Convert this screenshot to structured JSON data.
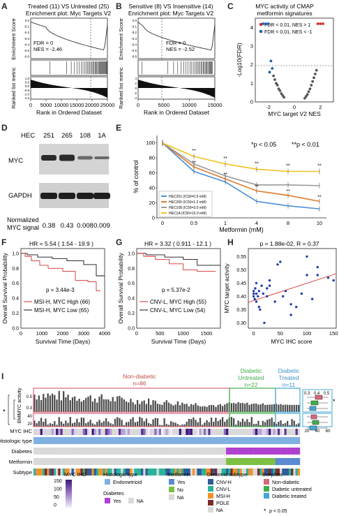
{
  "panel_labels": [
    "A",
    "B",
    "C",
    "D",
    "E",
    "F",
    "G",
    "H",
    "I"
  ],
  "panelA": {
    "title1": "Treated (11) VS Untreated (25)",
    "title2": "Enrichment plot: Myc Targets V2",
    "ylabel_top": "Enrichment Score",
    "ylabel_bottom": "Ranked list metric",
    "xlabel": "Rank in Ordered Dataset",
    "fdr": "FDR = 0",
    "nes": "NES = -2.46",
    "xticks": [
      "0",
      "5000",
      "10000",
      "15000",
      "20000",
      "25000"
    ],
    "yticks_top": [
      "0.0",
      "-0.1",
      "-0.2",
      "-0.3",
      "-0.4",
      "-0.5",
      "-0.6"
    ],
    "yticks_bottom": [
      "1.0",
      "0.5",
      "0.0",
      "-0.5",
      "-1.0",
      "-1.5"
    ]
  },
  "panelB": {
    "title1": "Sensitive (8) VS Insensitive (14)",
    "title2": "Enrichment plot: Myc Targets V2",
    "ylabel_top": "Enrichment Score",
    "ylabel_bottom": "Ranked list metric",
    "xlabel": "Rank in Ordered Dataset",
    "fdr": "FDR = 0",
    "nes": "NES = -2.52",
    "xticks": [
      "0",
      "5000",
      "10000",
      "15000"
    ],
    "yticks_top": [
      "0.0",
      "-0.1",
      "-0.2",
      "-0.3",
      "-0.4",
      "-0.5",
      "-0.6"
    ],
    "yticks_bottom": [
      "4",
      "2",
      "0",
      "-2",
      "-4"
    ]
  },
  "panelC": {
    "title1": "MYC activity of CMAP",
    "title2": "metformin signatures",
    "legend1": "FDR < 0.01, NES > 1",
    "legend2": "FDR < 0.01, NES < -1",
    "ylabel": "-Log10(FDR)",
    "xlabel": "MYC target V2 NES",
    "xticks": [
      "-2",
      "0",
      "2"
    ],
    "yticks": [
      "0",
      "1",
      "2",
      "3",
      "4"
    ],
    "colors": {
      "pos": "#d32f2f",
      "neg": "#1f5fa8",
      "ns": "#555555"
    }
  },
  "panelD": {
    "header": "HEC",
    "lanes": [
      "251",
      "265",
      "108",
      "1A"
    ],
    "row1": "MYC",
    "row2": "GAPDH",
    "sig_label1": "Normalized",
    "sig_label2": "MYC signal",
    "signals": [
      "0.38",
      "0.43",
      "0.008",
      "0.009"
    ]
  },
  "panelE": {
    "sig1": "*p < 0.05",
    "sig2": "**p < 0.01",
    "ylabel": "% of control",
    "xlabel": "Metformin (mM)",
    "yticks": [
      "0",
      "20",
      "40",
      "60",
      "80",
      "100"
    ],
    "legend": [
      "HEC251 (IC50=0.9 mM)",
      "HEC265 (IC50=1.2 mM)",
      "HEC108 (IC50=3.0 mM)",
      "HEC1A (IC50=15.0 mM)"
    ]
  },
  "panelF": {
    "hr": "HR = 5.54 ( 1.54 - 19.9 )",
    "p": "p = 3.44e-3",
    "legend_high": "MSI-H, MYC High (66)",
    "legend_low": "MSI-H, MYC Low (65)",
    "ylabel": "Overall Survival Probability",
    "xlabel": "Survival Time (Days)",
    "xticks": [
      "0",
      "1000",
      "2000",
      "3000",
      "4000"
    ],
    "yticks": [
      "0.0",
      "0.2",
      "0.4",
      "0.6",
      "0.8",
      "1.0"
    ]
  },
  "panelG": {
    "hr": "HR = 3.32 ( 0.911 - 12.1 )",
    "p": "p = 5.37e-2",
    "legend_high": "CNV-L, MYC High (55)",
    "legend_low": "CNV-L, MYC Low (54)",
    "ylabel": "Overall Survival Probability",
    "xlabel": "Survival Time (Days)",
    "xticks": [
      "0",
      "500",
      "1000",
      "1500"
    ],
    "yticks": [
      "0.0",
      "0.2",
      "0.4",
      "0.6",
      "0.8",
      "1.0"
    ]
  },
  "panelH": {
    "title": "p = 1.88e-02, R = 0.37",
    "ylabel": "MYC target activity",
    "xlabel": "MYC IHC score",
    "xticks": [
      "0",
      "50",
      "100",
      "150"
    ],
    "yticks": [
      "0.30",
      "0.35",
      "0.40",
      "0.45",
      "0.50",
      "0.55"
    ]
  },
  "panelI": {
    "group1": "Non-diabetic",
    "group1_n": "n=86",
    "group2a": "Diabetic",
    "group2b": "Untreated",
    "group2_n": "n=22",
    "group3a": "Diabetic",
    "group3b": "Treated",
    "group3_n": "n=11",
    "row_myc": "MYC activity",
    "row_bmi": "BMI",
    "row_ihc": "MYC IHC",
    "track_labels": [
      "Histologic type",
      "Diabetes",
      "Metformin",
      "Subtype"
    ],
    "myc_ticks": [
      "0.5",
      "0.3"
    ],
    "bmi_ticks": [
      "40",
      "20"
    ],
    "box1_ticks": [
      "0.3",
      "0.4",
      "0.5"
    ],
    "box2_ticks": [
      "20",
      "40",
      "60"
    ],
    "star": "*",
    "legend": {
      "ihc_title": "MYC IHC",
      "ihc_ticks": [
        "150",
        "100",
        "50",
        "0"
      ],
      "hist_title": "Histologic type",
      "hist_item": "Endometrioid",
      "diab_title": "Diabetes",
      "diab_yes": "Yes",
      "diab_na": "NA",
      "met_title": "Metformin",
      "met_yes": "Yes",
      "met_no": "No",
      "met_na": "NA",
      "gen_title": "Genomic subtype",
      "gen_items": [
        "CNV-H",
        "CNV-L",
        "MSI-H",
        "POLE",
        "NA"
      ],
      "box_title": "Boxplots",
      "box_items": [
        "Non-diabetic",
        "Diabetic untreated",
        "Diabetic treated"
      ],
      "sig": "p < 0.05"
    },
    "colors": {
      "nondiab": "#d9667a",
      "untreated": "#3fae49",
      "treated": "#43a6d6",
      "endometrioid": "#7fb0e0",
      "diab_yes": "#b040d0",
      "na": "#d9d9d9",
      "met_yes": "#5a8ad0",
      "met_no": "#7cc043",
      "cnvh": "#2f5a96",
      "cnvl": "#2ab39a",
      "msih": "#f1922a",
      "pole": "#7c2a2a"
    }
  }
}
